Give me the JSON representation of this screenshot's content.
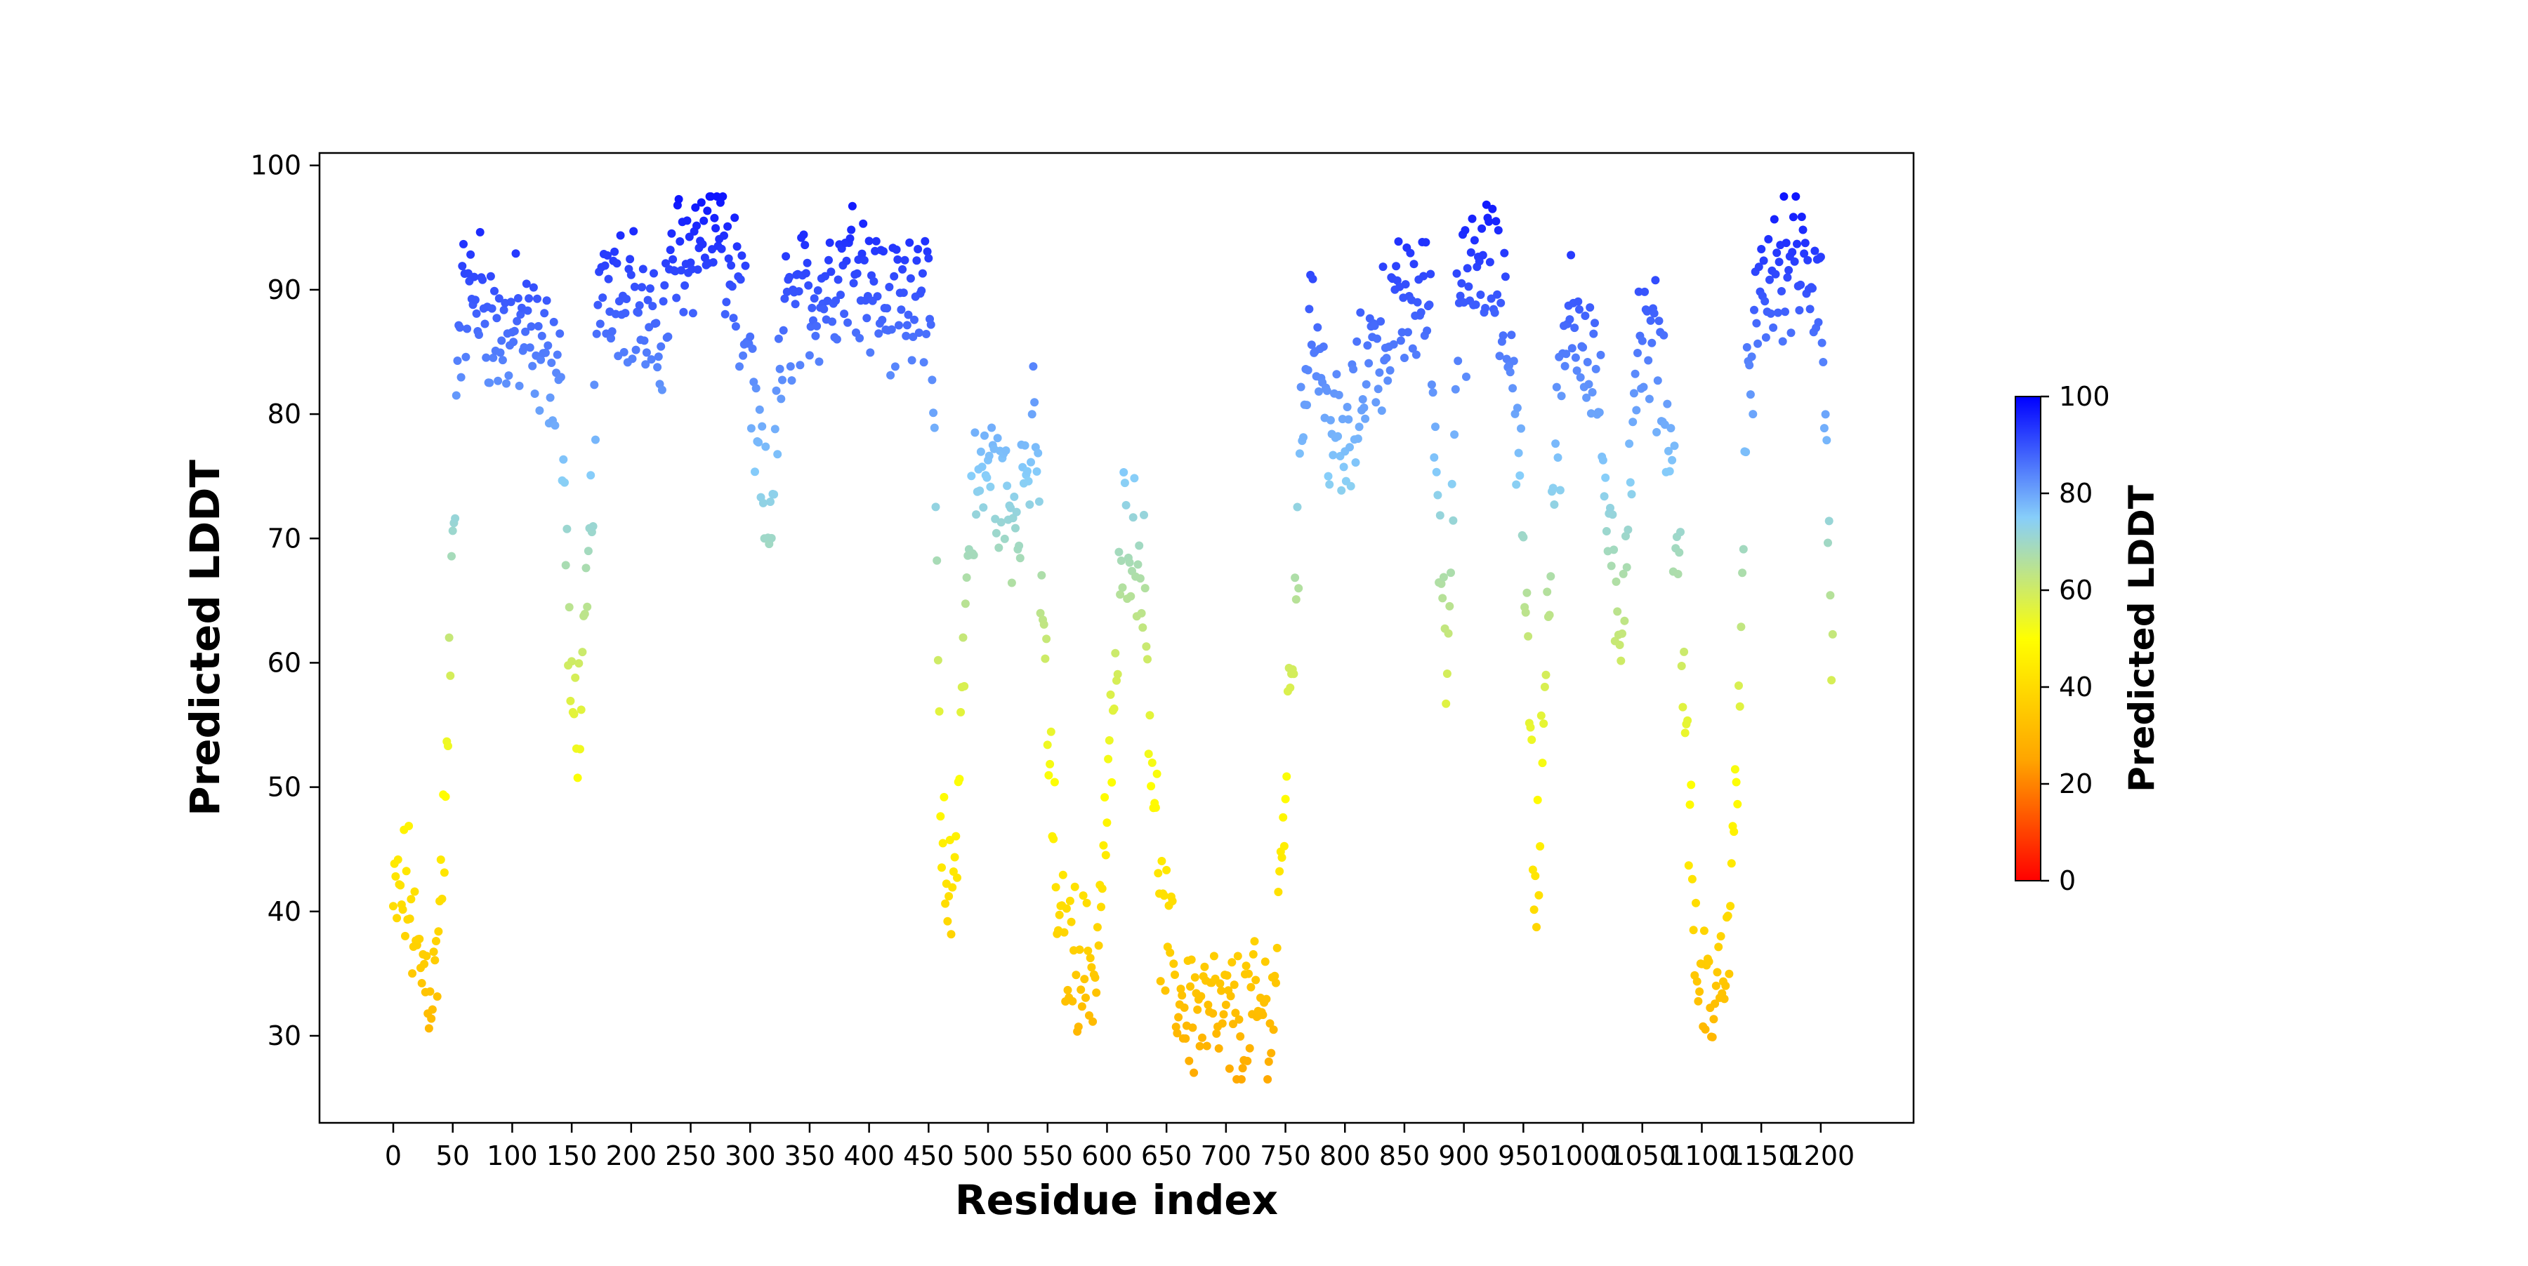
{
  "chart_data": {
    "type": "scatter",
    "title": "",
    "xlabel": "Residue index",
    "ylabel": "Predicted LDDT",
    "xlim": [
      -62,
      1278
    ],
    "ylim": [
      23,
      101
    ],
    "x_ticks": [
      0,
      50,
      100,
      150,
      200,
      250,
      300,
      350,
      400,
      450,
      500,
      550,
      600,
      650,
      700,
      750,
      800,
      850,
      900,
      950,
      1000,
      1050,
      1100,
      1150,
      1200
    ],
    "y_ticks": [
      30,
      40,
      50,
      60,
      70,
      80,
      90,
      100
    ],
    "grid": false,
    "colorbar": {
      "label": "Predicted LDDT",
      "range": [
        0,
        100
      ],
      "ticks": [
        0,
        20,
        40,
        60,
        80,
        100
      ],
      "colormap": [
        "#ff0000",
        "#ffa500",
        "#ffff00",
        "#87cefa",
        "#0000ff"
      ]
    },
    "profile_description": "One point per residue 0-1210; y = predicted LDDT, color mapped to value",
    "profile": [
      [
        0,
        40
      ],
      [
        12,
        42
      ],
      [
        20,
        36
      ],
      [
        35,
        34
      ],
      [
        45,
        50
      ],
      [
        55,
        88
      ],
      [
        70,
        90
      ],
      [
        90,
        86
      ],
      [
        105,
        87
      ],
      [
        120,
        85
      ],
      [
        140,
        84
      ],
      [
        150,
        55
      ],
      [
        160,
        58
      ],
      [
        175,
        92
      ],
      [
        200,
        90
      ],
      [
        220,
        85
      ],
      [
        240,
        93
      ],
      [
        270,
        95
      ],
      [
        290,
        90
      ],
      [
        305,
        78
      ],
      [
        315,
        70
      ],
      [
        330,
        88
      ],
      [
        360,
        90
      ],
      [
        390,
        93
      ],
      [
        420,
        88
      ],
      [
        445,
        92
      ],
      [
        455,
        80
      ],
      [
        460,
        45
      ],
      [
        470,
        40
      ],
      [
        485,
        72
      ],
      [
        500,
        76
      ],
      [
        520,
        72
      ],
      [
        540,
        78
      ],
      [
        550,
        55
      ],
      [
        560,
        38
      ],
      [
        590,
        35
      ],
      [
        605,
        55
      ],
      [
        615,
        72
      ],
      [
        630,
        68
      ],
      [
        645,
        40
      ],
      [
        660,
        33
      ],
      [
        700,
        31
      ],
      [
        740,
        32
      ],
      [
        755,
        60
      ],
      [
        770,
        90
      ],
      [
        785,
        80
      ],
      [
        800,
        76
      ],
      [
        820,
        85
      ],
      [
        845,
        88
      ],
      [
        870,
        90
      ],
      [
        885,
        60
      ],
      [
        895,
        88
      ],
      [
        920,
        93
      ],
      [
        940,
        85
      ],
      [
        950,
        72
      ],
      [
        960,
        40
      ],
      [
        975,
        75
      ],
      [
        990,
        88
      ],
      [
        1010,
        85
      ],
      [
        1030,
        60
      ],
      [
        1045,
        85
      ],
      [
        1065,
        85
      ],
      [
        1080,
        70
      ],
      [
        1095,
        35
      ],
      [
        1110,
        32
      ],
      [
        1125,
        40
      ],
      [
        1140,
        85
      ],
      [
        1160,
        91
      ],
      [
        1180,
        92
      ],
      [
        1200,
        90
      ],
      [
        1210,
        60
      ]
    ]
  }
}
